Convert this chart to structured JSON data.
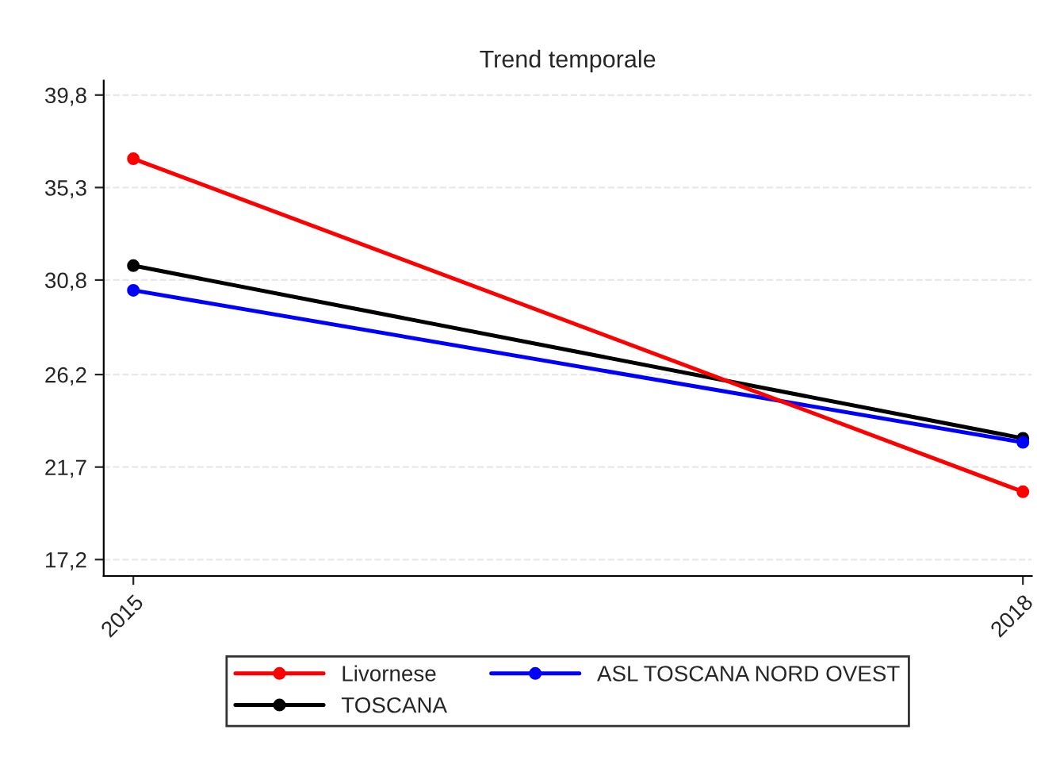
{
  "chart_data": {
    "type": "line",
    "title": "Trend temporale",
    "x": [
      2015,
      2018
    ],
    "series": [
      {
        "name": "Livornese",
        "color": "#ff0000",
        "values": [
          36.7,
          20.5
        ]
      },
      {
        "name": "ASL TOSCANA NORD OVEST",
        "color": "#0000ff",
        "values": [
          30.3,
          22.9
        ]
      },
      {
        "name": "TOSCANA",
        "color": "#000000",
        "values": [
          31.5,
          23.1
        ]
      }
    ],
    "xlim": [
      2014.9,
      2018.03
    ],
    "xticks": [
      2015,
      2018
    ],
    "ylim": [
      16.4,
      40.5
    ],
    "yticks": [
      {
        "value": 17.2,
        "label": "17,2"
      },
      {
        "value": 21.7,
        "label": "21,7"
      },
      {
        "value": 26.2,
        "label": "26,2"
      },
      {
        "value": 30.8,
        "label": "30,8"
      },
      {
        "value": 35.3,
        "label": "35,3"
      },
      {
        "value": 39.8,
        "label": "39,8"
      }
    ],
    "grid": "y",
    "legend": "bottom",
    "marker": "circle",
    "line_style": "solid"
  }
}
